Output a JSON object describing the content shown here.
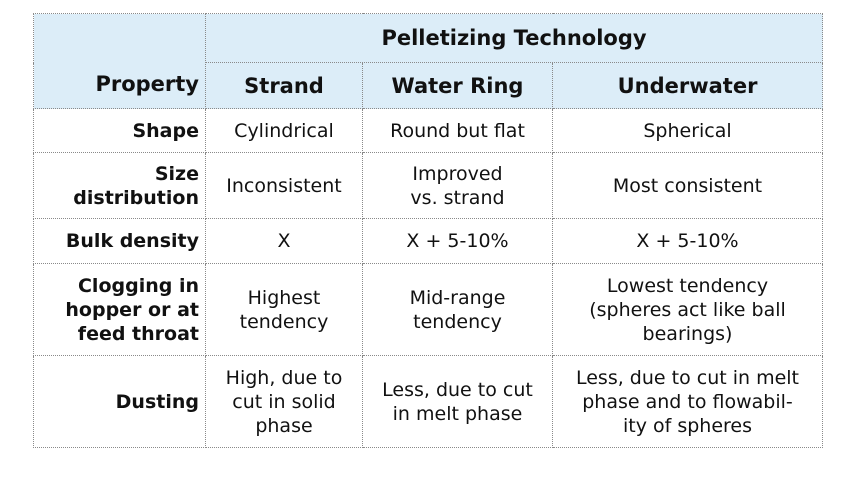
{
  "table": {
    "group_header": "Pelletizing Technology",
    "property_header": "Property",
    "columns": [
      "Strand",
      "Water Ring",
      "Underwater"
    ],
    "rows": [
      {
        "property": "Shape",
        "strand": "Cylindrical",
        "water_ring": "Round but flat",
        "underwater": "Spherical"
      },
      {
        "property": "Size\ndistribution",
        "strand": "Inconsistent",
        "water_ring": "Improved\nvs. strand",
        "underwater": "Most consistent"
      },
      {
        "property": "Bulk density",
        "strand": "X",
        "water_ring": "X + 5-10%",
        "underwater": "X + 5-10%"
      },
      {
        "property": "Clogging in\nhopper or at\nfeed throat",
        "strand": "Highest\ntendency",
        "water_ring": "Mid-range\ntendency",
        "underwater": "Lowest tendency\n(spheres act like ball\nbearings)"
      },
      {
        "property": "Dusting",
        "strand": "High, due to\ncut in solid\nphase",
        "water_ring": "Less, due to cut\nin melt phase",
        "underwater": "Less, due to cut in melt\nphase and to flowabil-\nity of spheres"
      }
    ]
  },
  "colors": {
    "header_bg": "#dcedf8",
    "border": "#8a8a8a"
  }
}
